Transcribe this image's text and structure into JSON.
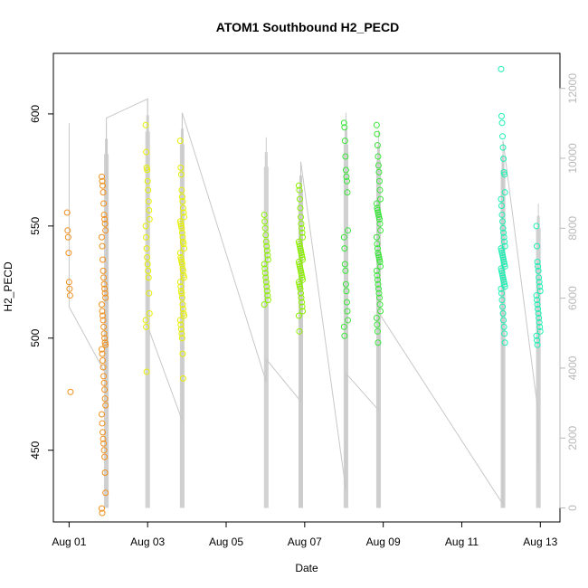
{
  "chart_data": {
    "type": "scatter",
    "title": "ATOM1 Southbound H2_PECD",
    "xlabel": "Date",
    "ylabel": "H2_PECD",
    "x_ticks": [
      "Aug 01",
      "Aug 03",
      "Aug 05",
      "Aug 07",
      "Aug 09",
      "Aug 11",
      "Aug 13"
    ],
    "x_tick_days": [
      1,
      3,
      5,
      7,
      9,
      11,
      13
    ],
    "xlim_days": [
      0.6,
      13.5
    ],
    "y_ticks": [
      450,
      500,
      550,
      600
    ],
    "ylim": [
      418,
      627
    ],
    "y2_ticks": [
      0,
      2000,
      4000,
      6000,
      8000,
      10000,
      12000
    ],
    "y2lim": [
      -400,
      13000
    ],
    "grid": false,
    "legend": "none",
    "sessions": [
      {
        "day": 1.0,
        "color": "#f0901e",
        "values": [
          556,
          548,
          545,
          538,
          525,
          522,
          519,
          476
        ]
      },
      {
        "day": 1.88,
        "color": "#f0901e",
        "values": [
          572,
          570,
          568,
          565,
          560,
          555,
          553,
          551,
          548,
          545,
          541,
          535,
          530,
          527,
          524,
          522,
          520,
          518,
          515,
          512,
          510,
          508,
          505,
          502,
          500,
          498,
          497,
          495,
          493,
          490,
          487,
          483,
          480,
          477,
          473,
          470,
          466,
          462,
          458,
          455,
          453,
          450,
          447,
          440,
          431,
          424,
          422
        ]
      },
      {
        "day": 3.0,
        "color": "#e6f000",
        "values": [
          595,
          583,
          576,
          575,
          570,
          566,
          561,
          557,
          553,
          550,
          545,
          540,
          536,
          533,
          530,
          527,
          520,
          511,
          508,
          505,
          485
        ]
      },
      {
        "day": 3.88,
        "color": "#e6f000",
        "values": [
          588,
          576,
          573,
          566,
          563,
          561,
          558,
          556,
          554,
          552,
          551,
          550,
          549,
          547,
          545,
          543,
          542,
          540,
          538,
          536,
          535,
          534,
          533,
          531,
          530,
          528,
          527,
          525,
          523,
          521,
          520,
          518,
          515,
          513,
          511,
          510,
          508,
          506,
          504,
          502,
          500,
          493,
          482
        ]
      },
      {
        "day": 6.02,
        "color": "#8cf000",
        "values": [
          555,
          552,
          549,
          546,
          543,
          541,
          539,
          537,
          535,
          533,
          531,
          529,
          527,
          525,
          523,
          521,
          519,
          517,
          515
        ]
      },
      {
        "day": 6.9,
        "color": "#8cf000",
        "values": [
          568,
          566,
          562,
          558,
          554,
          551,
          549,
          547,
          545,
          543,
          542,
          541,
          540,
          539,
          538,
          537,
          536,
          535,
          534,
          533,
          532,
          531,
          530,
          529,
          528,
          527,
          526,
          525,
          524,
          523,
          522,
          520,
          518,
          516,
          514,
          512,
          510,
          503
        ]
      },
      {
        "day": 8.05,
        "color": "#3ce63c",
        "values": [
          596,
          594,
          588,
          581,
          575,
          572,
          570,
          565,
          548,
          545,
          540,
          533,
          530,
          524,
          521,
          516,
          512,
          508,
          505,
          501
        ]
      },
      {
        "day": 8.88,
        "color": "#3ce63c",
        "values": [
          595,
          591,
          586,
          581,
          577,
          574,
          570,
          566,
          562,
          560,
          558,
          557,
          556,
          555,
          554,
          553,
          551,
          548,
          545,
          542,
          540,
          538,
          537,
          536,
          535,
          534,
          532,
          530,
          528,
          526,
          524,
          522,
          520,
          518,
          515,
          512,
          509,
          506,
          503,
          498
        ]
      },
      {
        "day": 12.05,
        "color": "#1ef0b4",
        "values": [
          620,
          599,
          596,
          590,
          585,
          580,
          574,
          573,
          565,
          562,
          559,
          555,
          552,
          549,
          547,
          545,
          543,
          541,
          540,
          539,
          538,
          537,
          536,
          535,
          534,
          533,
          532,
          531,
          530,
          529,
          528,
          527,
          526,
          525,
          524,
          523,
          522,
          520,
          517,
          514,
          511,
          508,
          505,
          502,
          498
        ]
      },
      {
        "day": 12.95,
        "color": "#1ef0b4",
        "values": [
          550,
          541,
          534,
          532,
          530,
          527,
          525,
          523,
          521,
          519,
          517,
          515,
          513,
          511,
          509,
          507,
          505,
          503,
          501,
          499,
          497
        ]
      }
    ],
    "secondary_trace": {
      "name": "",
      "days": [
        1.0,
        1.0,
        1.95,
        1.95,
        3.0,
        3.0,
        3.88,
        3.88,
        6.02,
        6.02,
        6.9,
        6.9,
        8.05,
        8.05,
        8.88,
        8.88,
        12.05,
        12.05,
        12.95,
        12.95
      ],
      "values": [
        11000,
        5750,
        3800,
        11150,
        11700,
        5200,
        2500,
        11300,
        3600,
        4250,
        3050,
        9900,
        500,
        3850,
        2800,
        5600,
        100,
        10500,
        2700,
        1100
      ]
    },
    "secondary_spikes": [
      {
        "day": 1.95,
        "from": 0,
        "to": 11000
      },
      {
        "day": 3.0,
        "from": 0,
        "to": 11700
      },
      {
        "day": 3.88,
        "from": 0,
        "to": 11300
      },
      {
        "day": 6.02,
        "from": 0,
        "to": 10600
      },
      {
        "day": 6.9,
        "from": 0,
        "to": 9900
      },
      {
        "day": 8.05,
        "from": 0,
        "to": 11300
      },
      {
        "day": 8.88,
        "from": 0,
        "to": 10800
      },
      {
        "day": 12.05,
        "from": 0,
        "to": 10500
      },
      {
        "day": 12.95,
        "from": 0,
        "to": 8700
      }
    ]
  }
}
